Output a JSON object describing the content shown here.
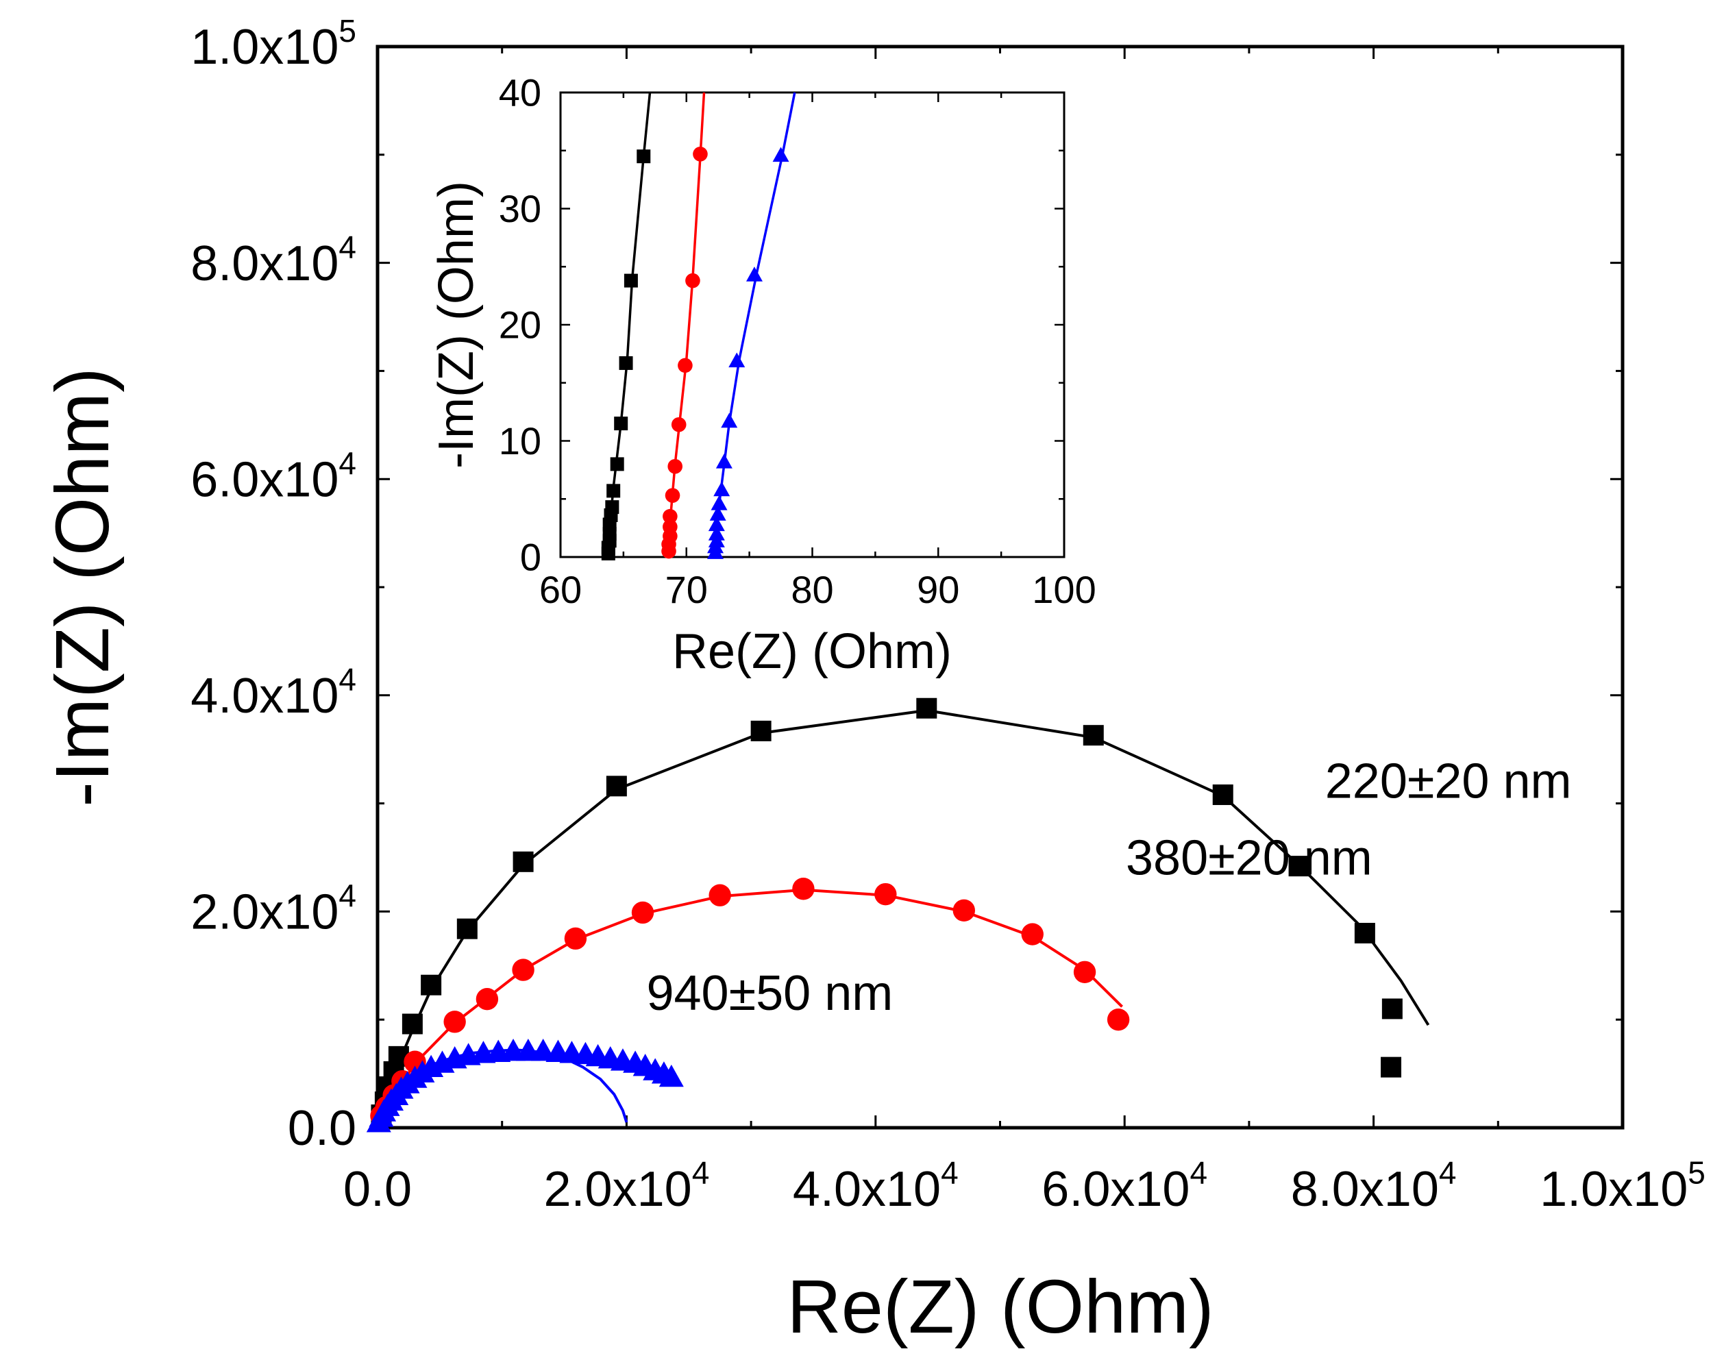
{
  "chart_data": [
    {
      "id": "main",
      "type": "scatter",
      "xlabel": "Re(Z) (Ohm)",
      "ylabel": "-Im(Z) (Ohm)",
      "xlim": [
        0,
        100000
      ],
      "ylim": [
        0,
        100000
      ],
      "x_ticks": [
        {
          "value": 0,
          "mantissa": "0.0",
          "exp": ""
        },
        {
          "value": 20000,
          "mantissa": "2.0x10",
          "exp": "4"
        },
        {
          "value": 40000,
          "mantissa": "4.0x10",
          "exp": "4"
        },
        {
          "value": 60000,
          "mantissa": "6.0x10",
          "exp": "4"
        },
        {
          "value": 80000,
          "mantissa": "8.0x10",
          "exp": "4"
        },
        {
          "value": 100000,
          "mantissa": "1.0x10",
          "exp": "5"
        }
      ],
      "y_ticks": [
        {
          "value": 0,
          "mantissa": "0.0",
          "exp": ""
        },
        {
          "value": 20000,
          "mantissa": "2.0x10",
          "exp": "4"
        },
        {
          "value": 40000,
          "mantissa": "4.0x10",
          "exp": "4"
        },
        {
          "value": 60000,
          "mantissa": "6.0x10",
          "exp": "4"
        },
        {
          "value": 80000,
          "mantissa": "8.0x10",
          "exp": "4"
        },
        {
          "value": 100000,
          "mantissa": "1.0x10",
          "exp": "5"
        }
      ],
      "minor_step": 10000,
      "series": [
        {
          "name": "220±20 nm",
          "color": "#000000",
          "marker": "square",
          "points": [
            [
              300,
              1200
            ],
            [
              600,
              2400
            ],
            [
              900,
              3800
            ],
            [
              1300,
              5200
            ],
            [
              1700,
              6600
            ],
            [
              2800,
              9600
            ],
            [
              4300,
              13200
            ],
            [
              7200,
              18400
            ],
            [
              11700,
              24600
            ],
            [
              19200,
              31600
            ],
            [
              30800,
              36700
            ],
            [
              44100,
              38800
            ],
            [
              57500,
              36300
            ],
            [
              67900,
              30800
            ],
            [
              74000,
              24200
            ],
            [
              79300,
              18000
            ],
            [
              81500,
              11000
            ],
            [
              81400,
              5600
            ]
          ],
          "fit": [
            [
              0,
              0
            ],
            [
              200,
              1000
            ],
            [
              600,
              2400
            ],
            [
              1100,
              4200
            ],
            [
              1700,
              6000
            ],
            [
              2800,
              9000
            ],
            [
              4300,
              12800
            ],
            [
              7200,
              18200
            ],
            [
              11700,
              24300
            ],
            [
              19200,
              31300
            ],
            [
              30800,
              36500
            ],
            [
              44100,
              38600
            ],
            [
              57500,
              36100
            ],
            [
              67900,
              30700
            ],
            [
              74000,
              24300
            ],
            [
              79000,
              18600
            ],
            [
              82200,
              13600
            ],
            [
              84400,
              9500
            ]
          ]
        },
        {
          "name": "380±20 nm",
          "color": "#ff0000",
          "marker": "circle",
          "points": [
            [
              300,
              1100
            ],
            [
              700,
              1900
            ],
            [
              1300,
              3000
            ],
            [
              2000,
              4300
            ],
            [
              3000,
              6100
            ],
            [
              6200,
              9800
            ],
            [
              8800,
              11900
            ],
            [
              11700,
              14600
            ],
            [
              15900,
              17500
            ],
            [
              21300,
              19900
            ],
            [
              27500,
              21500
            ],
            [
              34200,
              22100
            ],
            [
              40800,
              21600
            ],
            [
              47100,
              20100
            ],
            [
              52600,
              17900
            ],
            [
              56800,
              14400
            ],
            [
              59500,
              10000
            ]
          ],
          "fit": [
            [
              0,
              0
            ],
            [
              300,
              1000
            ],
            [
              800,
              2200
            ],
            [
              1500,
              3400
            ],
            [
              2200,
              4600
            ],
            [
              3300,
              6300
            ],
            [
              6200,
              9700
            ],
            [
              8800,
              12000
            ],
            [
              11700,
              14600
            ],
            [
              15900,
              17400
            ],
            [
              21300,
              19800
            ],
            [
              27500,
              21400
            ],
            [
              34200,
              22000
            ],
            [
              40800,
              21500
            ],
            [
              47100,
              20000
            ],
            [
              52600,
              17700
            ],
            [
              56800,
              14600
            ],
            [
              59800,
              11200
            ]
          ]
        },
        {
          "name": "940±50 nm",
          "color": "#0000ff",
          "marker": "triangle",
          "points": [
            [
              100,
              500
            ],
            [
              300,
              1000
            ],
            [
              500,
              1500
            ],
            [
              800,
              2000
            ],
            [
              1100,
              2500
            ],
            [
              1500,
              3000
            ],
            [
              1900,
              3600
            ],
            [
              2400,
              4100
            ],
            [
              3000,
              4600
            ],
            [
              3600,
              5100
            ],
            [
              4300,
              5600
            ],
            [
              5200,
              6000
            ],
            [
              6200,
              6400
            ],
            [
              7300,
              6700
            ],
            [
              8500,
              6900
            ],
            [
              9700,
              7000
            ],
            [
              10900,
              7100
            ],
            [
              12100,
              7100
            ],
            [
              13300,
              7100
            ],
            [
              14500,
              7000
            ],
            [
              15600,
              6900
            ],
            [
              16700,
              6800
            ],
            [
              17700,
              6600
            ],
            [
              18700,
              6400
            ],
            [
              19700,
              6200
            ],
            [
              20700,
              6000
            ],
            [
              21500,
              5700
            ],
            [
              22300,
              5300
            ],
            [
              23000,
              5000
            ],
            [
              23600,
              4700
            ]
          ],
          "fit": [
            [
              0,
              0
            ],
            [
              300,
              1100
            ],
            [
              700,
              2100
            ],
            [
              1300,
              3100
            ],
            [
              2100,
              4100
            ],
            [
              3100,
              5000
            ],
            [
              4300,
              5800
            ],
            [
              5800,
              6400
            ],
            [
              7500,
              6900
            ],
            [
              9300,
              7100
            ],
            [
              11200,
              7200
            ],
            [
              13100,
              7000
            ],
            [
              14900,
              6500
            ],
            [
              16500,
              5600
            ],
            [
              17900,
              4500
            ],
            [
              19000,
              3100
            ],
            [
              19700,
              1600
            ],
            [
              20000,
              500
            ]
          ]
        }
      ],
      "annotations": [
        {
          "text": "220±20 nm",
          "color": "#000000",
          "x": 86000,
          "y": 30500
        },
        {
          "text": "380±20 nm",
          "color": "#ff0000",
          "x": 70000,
          "y": 23400
        },
        {
          "text": "940±50 nm",
          "color": "#00008b",
          "x": 31500,
          "y": 10900
        }
      ]
    },
    {
      "id": "inset",
      "type": "scatter",
      "xlabel": "Re(Z) (Ohm)",
      "ylabel": "-Im(Z) (Ohm)",
      "xlim": [
        60,
        100
      ],
      "ylim": [
        0,
        40
      ],
      "x_ticks": [
        {
          "value": 60,
          "mantissa": "60",
          "exp": ""
        },
        {
          "value": 70,
          "mantissa": "70",
          "exp": ""
        },
        {
          "value": 80,
          "mantissa": "80",
          "exp": ""
        },
        {
          "value": 90,
          "mantissa": "90",
          "exp": ""
        },
        {
          "value": 100,
          "mantissa": "100",
          "exp": ""
        }
      ],
      "y_ticks": [
        {
          "value": 0,
          "mantissa": "0",
          "exp": ""
        },
        {
          "value": 10,
          "mantissa": "10",
          "exp": ""
        },
        {
          "value": 20,
          "mantissa": "20",
          "exp": ""
        },
        {
          "value": 30,
          "mantissa": "30",
          "exp": ""
        },
        {
          "value": 40,
          "mantissa": "40",
          "exp": ""
        }
      ],
      "minor_step": 5,
      "series": [
        {
          "name": "220±20 nm",
          "color": "#000000",
          "marker": "square",
          "points": [
            [
              63.8,
              0.3
            ],
            [
              63.8,
              0.8
            ],
            [
              63.9,
              1.4
            ],
            [
              63.9,
              2.0
            ],
            [
              63.9,
              2.8
            ],
            [
              64.0,
              3.6
            ],
            [
              64.1,
              4.3
            ],
            [
              64.2,
              5.7
            ],
            [
              64.5,
              8.0
            ],
            [
              64.8,
              11.5
            ],
            [
              65.2,
              16.7
            ],
            [
              65.6,
              23.8
            ],
            [
              66.6,
              34.5
            ]
          ],
          "fit": [
            [
              63.7,
              0
            ],
            [
              63.9,
              2.5
            ],
            [
              64.2,
              6
            ],
            [
              64.8,
              11.5
            ],
            [
              65.3,
              17
            ],
            [
              65.7,
              24
            ],
            [
              66.6,
              34.5
            ],
            [
              67.1,
              40
            ]
          ]
        },
        {
          "name": "380±20 nm",
          "color": "#ff0000",
          "marker": "circle",
          "points": [
            [
              68.6,
              0.5
            ],
            [
              68.6,
              1.1
            ],
            [
              68.7,
              1.8
            ],
            [
              68.7,
              2.6
            ],
            [
              68.7,
              3.5
            ],
            [
              68.9,
              5.3
            ],
            [
              69.1,
              7.8
            ],
            [
              69.4,
              11.4
            ],
            [
              69.9,
              16.5
            ],
            [
              70.5,
              23.8
            ],
            [
              71.1,
              34.7
            ]
          ],
          "fit": [
            [
              68.5,
              0
            ],
            [
              68.7,
              3
            ],
            [
              69.1,
              8
            ],
            [
              69.5,
              12
            ],
            [
              70.0,
              17
            ],
            [
              70.5,
              24
            ],
            [
              71.1,
              34.5
            ],
            [
              71.4,
              40
            ]
          ]
        },
        {
          "name": "940±50 nm",
          "color": "#0000ff",
          "marker": "triangle",
          "points": [
            [
              72.3,
              0.4
            ],
            [
              72.3,
              0.9
            ],
            [
              72.4,
              1.4
            ],
            [
              72.4,
              2.0
            ],
            [
              72.4,
              2.8
            ],
            [
              72.5,
              3.7
            ],
            [
              72.6,
              4.6
            ],
            [
              72.8,
              5.8
            ],
            [
              73.0,
              8.2
            ],
            [
              73.4,
              11.7
            ],
            [
              74.0,
              16.9
            ],
            [
              75.4,
              24.3
            ],
            [
              77.5,
              34.6
            ]
          ],
          "fit": [
            [
              72.1,
              0
            ],
            [
              72.3,
              2
            ],
            [
              72.6,
              4.5
            ],
            [
              73.0,
              8
            ],
            [
              73.4,
              11.5
            ],
            [
              74.2,
              17
            ],
            [
              75.6,
              24.5
            ],
            [
              77.6,
              34.5
            ],
            [
              78.6,
              40
            ]
          ]
        }
      ]
    }
  ]
}
